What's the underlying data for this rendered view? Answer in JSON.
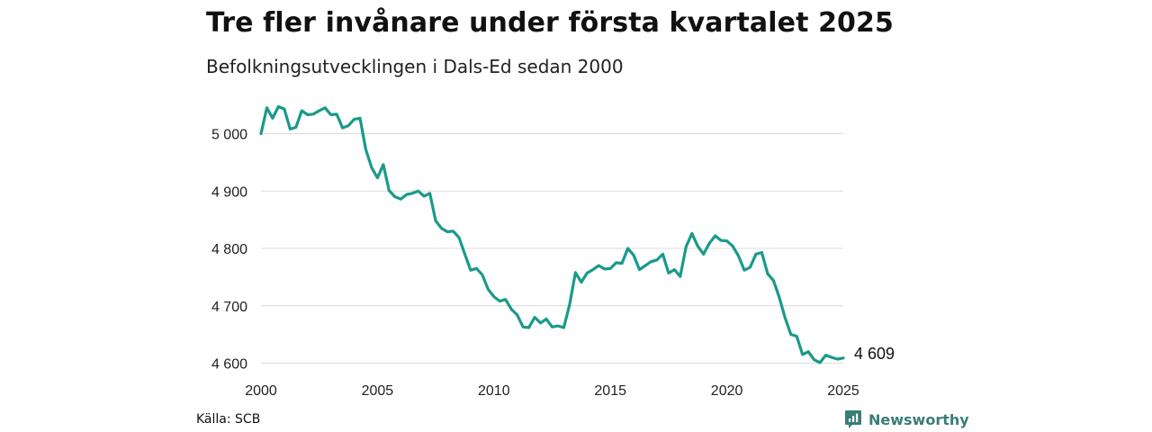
{
  "title": "Tre fler invånare under första kvartalet 2025",
  "subtitle": "Befolkningsutvecklingen i Dals-Ed sedan 2000",
  "source": "Källa: SCB",
  "brand": {
    "name": "Newsworthy",
    "icon": "newsworthy-logo-icon",
    "color": "#3a7d78"
  },
  "chart_data": {
    "type": "line",
    "line_color": "#1a9a89",
    "grid": true,
    "xlim": [
      2000,
      2025
    ],
    "ylim": [
      4600,
      5000
    ],
    "x_ticks": [
      2000,
      2005,
      2010,
      2015,
      2020,
      2025
    ],
    "x_tick_labels": [
      "2000",
      "2005",
      "2010",
      "2015",
      "2020",
      "2025"
    ],
    "y_ticks": [
      4600,
      4700,
      4800,
      4900,
      5000
    ],
    "y_tick_labels": [
      "4 600",
      "4 700",
      "4 800",
      "4 900",
      "5 000"
    ],
    "end_label": "4 609",
    "x": [
      2000.0,
      2000.25,
      2000.5,
      2000.75,
      2001.0,
      2001.25,
      2001.5,
      2001.75,
      2002.0,
      2002.25,
      2002.5,
      2002.75,
      2003.0,
      2003.25,
      2003.5,
      2003.75,
      2004.0,
      2004.25,
      2004.5,
      2004.75,
      2005.0,
      2005.25,
      2005.5,
      2005.75,
      2006.0,
      2006.25,
      2006.5,
      2006.75,
      2007.0,
      2007.25,
      2007.5,
      2007.75,
      2008.0,
      2008.25,
      2008.5,
      2008.75,
      2009.0,
      2009.25,
      2009.5,
      2009.75,
      2010.0,
      2010.25,
      2010.5,
      2010.75,
      2011.0,
      2011.25,
      2011.5,
      2011.75,
      2012.0,
      2012.25,
      2012.5,
      2012.75,
      2013.0,
      2013.25,
      2013.5,
      2013.75,
      2014.0,
      2014.25,
      2014.5,
      2014.75,
      2015.0,
      2015.25,
      2015.5,
      2015.75,
      2016.0,
      2016.25,
      2016.5,
      2016.75,
      2017.0,
      2017.25,
      2017.5,
      2017.75,
      2018.0,
      2018.25,
      2018.5,
      2018.75,
      2019.0,
      2019.25,
      2019.5,
      2019.75,
      2020.0,
      2020.25,
      2020.5,
      2020.75,
      2021.0,
      2021.25,
      2021.5,
      2021.75,
      2022.0,
      2022.25,
      2022.5,
      2022.75,
      2023.0,
      2023.25,
      2023.5,
      2023.75,
      2024.0,
      2024.25,
      2024.5,
      2024.75,
      2025.0
    ],
    "values": [
      5000,
      5045,
      5027,
      5047,
      5043,
      5008,
      5011,
      5040,
      5033,
      5034,
      5040,
      5045,
      5033,
      5034,
      5010,
      5014,
      5025,
      5027,
      4972,
      4941,
      4923,
      4946,
      4901,
      4890,
      4886,
      4894,
      4896,
      4900,
      4891,
      4896,
      4848,
      4835,
      4829,
      4830,
      4819,
      4790,
      4762,
      4765,
      4754,
      4729,
      4716,
      4708,
      4711,
      4694,
      4684,
      4663,
      4662,
      4680,
      4670,
      4677,
      4663,
      4665,
      4662,
      4702,
      4758,
      4741,
      4757,
      4763,
      4770,
      4764,
      4765,
      4775,
      4774,
      4800,
      4788,
      4763,
      4770,
      4777,
      4780,
      4790,
      4757,
      4763,
      4751,
      4803,
      4826,
      4804,
      4790,
      4809,
      4822,
      4814,
      4813,
      4804,
      4787,
      4762,
      4767,
      4790,
      4793,
      4756,
      4744,
      4715,
      4679,
      4650,
      4647,
      4615,
      4620,
      4606,
      4601,
      4614,
      4610,
      4607,
      4609
    ]
  }
}
